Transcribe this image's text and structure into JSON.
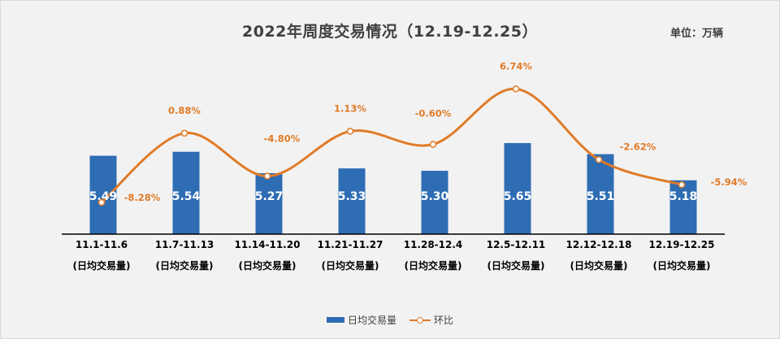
{
  "header": {
    "title": "2022年周度交易情况（12.19-12.25）",
    "unit": "单位：万辆"
  },
  "legend": {
    "bar_label": "日均交易量",
    "line_label": "环比"
  },
  "colors": {
    "bar": "#2e6db4",
    "line": "#e07b28",
    "bar_text": "#ffffff",
    "pct_text": "#e07b28",
    "axis": "#000000"
  },
  "chart_data": {
    "type": "bar",
    "title": "2022年周度交易情况（12.19-12.25）",
    "categories": [
      "11.1-11.6",
      "11.7-11.13",
      "11.14-11.20",
      "11.21-11.27",
      "11.28-12.4",
      "12.5-12.11",
      "12.12-12.18",
      "12.19-12.25"
    ],
    "category_sublabel": "(日均交易量)",
    "series": [
      {
        "name": "日均交易量",
        "type": "bar",
        "values": [
          5.49,
          5.54,
          5.27,
          5.33,
          5.3,
          5.65,
          5.51,
          5.18
        ],
        "labels": [
          "5.49",
          "5.54",
          "5.27",
          "5.33",
          "5.30",
          "5.65",
          "5.51",
          "5.18"
        ]
      },
      {
        "name": "环比",
        "type": "line",
        "values": [
          -8.28,
          0.88,
          -4.8,
          1.13,
          -0.6,
          6.74,
          -2.62,
          -5.94
        ],
        "labels": [
          "-8.28%",
          "0.88%",
          "-4.80%",
          "1.13%",
          "-0.60%",
          "6.74%",
          "-2.62%",
          "-5.94%"
        ]
      }
    ],
    "legend_position": "bottom",
    "grid": false
  }
}
